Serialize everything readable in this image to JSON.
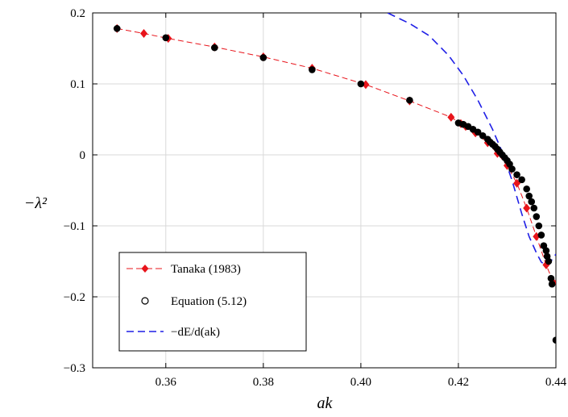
{
  "chart_data": {
    "type": "line",
    "xlabel": "ak",
    "ylabel": "−λ²",
    "xlim": [
      0.345,
      0.44
    ],
    "ylim": [
      -0.3,
      0.2
    ],
    "grid": true,
    "legend_position": "bottom-left",
    "x_ticks": [
      {
        "value": 0.36,
        "label": "0.36"
      },
      {
        "value": 0.38,
        "label": "0.38"
      },
      {
        "value": 0.4,
        "label": "0.40"
      },
      {
        "value": 0.42,
        "label": "0.42"
      },
      {
        "value": 0.44,
        "label": "0.44"
      }
    ],
    "y_ticks": [
      {
        "value": 0.2,
        "label": "0.2"
      },
      {
        "value": 0.1,
        "label": "0.1"
      },
      {
        "value": 0,
        "label": "0"
      },
      {
        "value": -0.1,
        "label": "−0.1"
      },
      {
        "value": -0.2,
        "label": "−0.2"
      },
      {
        "value": -0.3,
        "label": "−0.3"
      }
    ],
    "series": [
      {
        "name": "Tanaka (1983)",
        "color": "#e8141b",
        "marker": "diamond",
        "line": "dash",
        "x": [
          0.35,
          0.3555,
          0.3605,
          0.37,
          0.38,
          0.39,
          0.401,
          0.41,
          0.4185,
          0.4205,
          0.4215,
          0.4235,
          0.426,
          0.428,
          0.43,
          0.432,
          0.434,
          0.436,
          0.438,
          0.4395
        ],
        "y": [
          0.178,
          0.171,
          0.164,
          0.152,
          0.138,
          0.122,
          0.099,
          0.076,
          0.053,
          0.044,
          0.04,
          0.031,
          0.017,
          0.002,
          -0.015,
          -0.04,
          -0.075,
          -0.115,
          -0.155,
          -0.18
        ]
      },
      {
        "name": "Equation (5.12)",
        "color": "#000000",
        "marker": "circle",
        "x": [
          0.35,
          0.36,
          0.37,
          0.38,
          0.39,
          0.4,
          0.41,
          0.42,
          0.421,
          0.422,
          0.423,
          0.424,
          0.425,
          0.426,
          0.4265,
          0.427,
          0.4275,
          0.428,
          0.4285,
          0.429,
          0.4295,
          0.43,
          0.4305,
          0.431,
          0.432,
          0.433,
          0.434,
          0.4345,
          0.435,
          0.4355,
          0.436,
          0.4365,
          0.437,
          0.4375,
          0.438,
          0.4382,
          0.4385,
          0.439,
          0.4392,
          0.44
        ],
        "y": [
          0.178,
          0.165,
          0.151,
          0.137,
          0.12,
          0.1,
          0.077,
          0.045,
          0.043,
          0.04,
          0.036,
          0.032,
          0.027,
          0.022,
          0.018,
          0.015,
          0.012,
          0.008,
          0.004,
          0.0,
          -0.004,
          -0.008,
          -0.013,
          -0.02,
          -0.028,
          -0.035,
          -0.048,
          -0.058,
          -0.066,
          -0.075,
          -0.087,
          -0.1,
          -0.113,
          -0.128,
          -0.135,
          -0.143,
          -0.15,
          -0.174,
          -0.182,
          -0.261
        ]
      },
      {
        "name": "−dE/d(ak)",
        "color": "#1f1fe6",
        "marker": "none",
        "line": "dash",
        "x": [
          0.4055,
          0.41,
          0.414,
          0.418,
          0.421,
          0.424,
          0.427,
          0.429,
          0.431,
          0.433,
          0.4345,
          0.436,
          0.437,
          0.438,
          0.4388,
          0.4395,
          0.44
        ],
        "y": [
          0.2,
          0.185,
          0.168,
          0.14,
          0.112,
          0.077,
          0.036,
          0.004,
          -0.036,
          -0.083,
          -0.115,
          -0.138,
          -0.151,
          -0.156,
          -0.152,
          -0.144,
          -0.14
        ]
      }
    ]
  }
}
